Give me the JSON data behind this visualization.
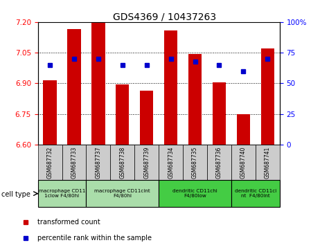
{
  "title": "GDS4369 / 10437263",
  "samples": [
    "GSM687732",
    "GSM687733",
    "GSM687737",
    "GSM687738",
    "GSM687739",
    "GSM687734",
    "GSM687735",
    "GSM687736",
    "GSM687740",
    "GSM687741"
  ],
  "red_values": [
    6.915,
    7.165,
    7.195,
    6.895,
    6.865,
    7.16,
    7.045,
    6.905,
    6.75,
    7.07
  ],
  "blue_values": [
    65,
    70,
    70,
    65,
    65,
    70,
    68,
    65,
    60,
    70
  ],
  "ylim_left": [
    6.6,
    7.2
  ],
  "ylim_right": [
    0,
    100
  ],
  "yticks_left": [
    6.6,
    6.75,
    6.9,
    7.05,
    7.2
  ],
  "yticks_right": [
    0,
    25,
    50,
    75,
    100
  ],
  "ytick_labels_right": [
    "0",
    "25",
    "50",
    "75",
    "100%"
  ],
  "bar_color": "#cc0000",
  "square_color": "#0000cc",
  "cell_types": [
    {
      "label": "macrophage CD11\n1clow F4/80hi",
      "start": 0,
      "end": 2,
      "color": "#aaddaa"
    },
    {
      "label": "macrophage CD11cint\nF4/80hi",
      "start": 2,
      "end": 5,
      "color": "#aaddaa"
    },
    {
      "label": "dendritic CD11chi\nF4/80low",
      "start": 5,
      "end": 8,
      "color": "#44cc44"
    },
    {
      "label": "dendritic CD11ci\nnt  F4/80int",
      "start": 8,
      "end": 10,
      "color": "#44cc44"
    }
  ],
  "cell_type_label": "cell type",
  "legend_red": "transformed count",
  "legend_blue": "percentile rank within the sample",
  "bar_width": 0.55,
  "tick_bg_color": "#cccccc"
}
